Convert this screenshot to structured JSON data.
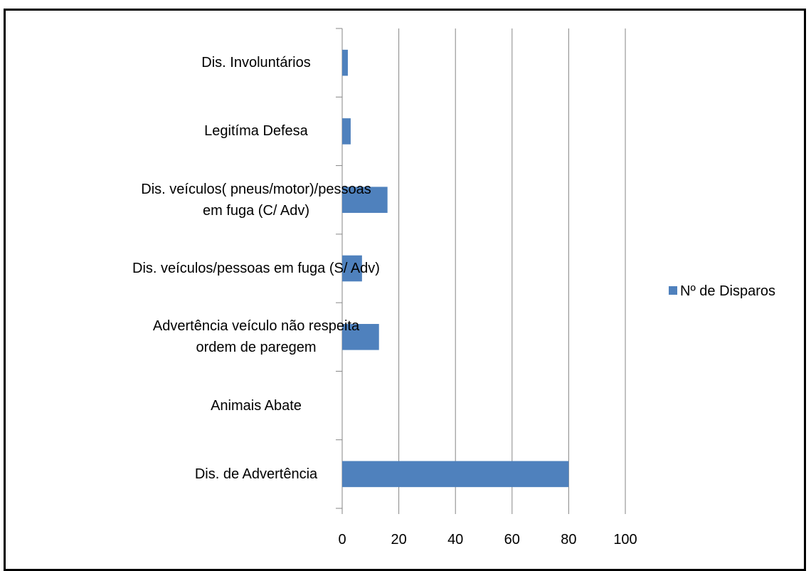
{
  "chart_data": {
    "type": "bar",
    "orientation": "horizontal",
    "categories": [
      "Dis. Involuntários",
      "Legitíma Defesa",
      "Dis. veículos( pneus/motor)/pessoas\nem fuga (C/ Adv)",
      "Dis. veículos/pessoas em fuga (S/ Adv)",
      "Advertência  veículo não respeita\nordem de paregem",
      "Animais Abate",
      "Dis. de Advertência"
    ],
    "series": [
      {
        "name": "Nº de Disparos",
        "color": "#4f81bd",
        "values": [
          2,
          3,
          16,
          7,
          13,
          0,
          80
        ]
      }
    ],
    "xlim": [
      0,
      100
    ],
    "xticks": [
      0,
      20,
      40,
      60,
      80,
      100
    ],
    "grid": true,
    "legend": "right"
  }
}
